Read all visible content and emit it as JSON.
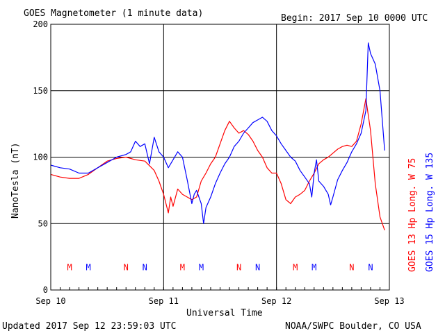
{
  "header": {
    "title": "GOES Magnetometer (1 minute data)",
    "begin": "Begin:  2017 Sep 10 0000 UTC"
  },
  "footer": {
    "updated": "Updated 2017 Sep 12 23:59:03 UTC",
    "source": "NOAA/SWPC Boulder, CO USA"
  },
  "colors": {
    "red_series": "#ff0000",
    "blue_series": "#0000ff",
    "grid": "#000000"
  },
  "chart_data": {
    "type": "line",
    "title": "GOES Magnetometer (1 minute data)",
    "xlabel": "Universal Time",
    "ylabel": "NanoTesla (nT)",
    "ylim": [
      0,
      200
    ],
    "xlim": [
      0,
      72
    ],
    "x_unit": "hours since 2017 Sep 10 0000 UTC",
    "x_ticks": [
      {
        "x": 0,
        "label": "Sep 10"
      },
      {
        "x": 24,
        "label": "Sep 11"
      },
      {
        "x": 48,
        "label": "Sep 12"
      },
      {
        "x": 72,
        "label": "Sep 13"
      }
    ],
    "y_ticks": [
      0,
      50,
      100,
      150,
      200
    ],
    "grid": true,
    "legend": [
      {
        "label": "GOES 13 Hp  Long. W 75",
        "color": "#ff0000"
      },
      {
        "label": "GOES 15 Hp  Long. W 135",
        "color": "#0000ff"
      }
    ],
    "markers": [
      {
        "x": 4,
        "label": "M",
        "color": "#ff0000"
      },
      {
        "x": 8,
        "label": "M",
        "color": "#0000ff"
      },
      {
        "x": 16,
        "label": "N",
        "color": "#ff0000"
      },
      {
        "x": 20,
        "label": "N",
        "color": "#0000ff"
      },
      {
        "x": 28,
        "label": "M",
        "color": "#ff0000"
      },
      {
        "x": 32,
        "label": "M",
        "color": "#0000ff"
      },
      {
        "x": 40,
        "label": "N",
        "color": "#ff0000"
      },
      {
        "x": 44,
        "label": "N",
        "color": "#0000ff"
      },
      {
        "x": 52,
        "label": "M",
        "color": "#ff0000"
      },
      {
        "x": 56,
        "label": "M",
        "color": "#0000ff"
      },
      {
        "x": 64,
        "label": "N",
        "color": "#ff0000"
      },
      {
        "x": 68,
        "label": "N",
        "color": "#0000ff"
      }
    ],
    "series": [
      {
        "name": "GOES 13 Hp  Long. W 75",
        "color": "#ff0000",
        "points": [
          [
            0,
            87
          ],
          [
            2,
            85
          ],
          [
            4,
            84
          ],
          [
            6,
            84
          ],
          [
            8,
            87
          ],
          [
            10,
            92
          ],
          [
            12,
            97
          ],
          [
            14,
            99
          ],
          [
            16,
            100
          ],
          [
            18,
            98
          ],
          [
            20,
            97
          ],
          [
            22,
            90
          ],
          [
            23,
            82
          ],
          [
            24,
            72
          ],
          [
            25,
            58
          ],
          [
            25.5,
            70
          ],
          [
            26,
            63
          ],
          [
            27,
            76
          ],
          [
            28,
            72
          ],
          [
            29,
            70
          ],
          [
            30,
            68
          ],
          [
            31,
            70
          ],
          [
            32,
            82
          ],
          [
            33,
            88
          ],
          [
            34,
            95
          ],
          [
            35,
            100
          ],
          [
            36,
            110
          ],
          [
            37,
            120
          ],
          [
            38,
            127
          ],
          [
            39,
            122
          ],
          [
            40,
            118
          ],
          [
            41,
            120
          ],
          [
            42,
            117
          ],
          [
            43,
            112
          ],
          [
            44,
            105
          ],
          [
            45,
            100
          ],
          [
            46,
            92
          ],
          [
            47,
            88
          ],
          [
            48,
            88
          ],
          [
            49,
            80
          ],
          [
            50,
            68
          ],
          [
            51,
            65
          ],
          [
            52,
            70
          ],
          [
            53,
            72
          ],
          [
            54,
            75
          ],
          [
            55,
            82
          ],
          [
            56,
            88
          ],
          [
            57,
            95
          ],
          [
            58,
            98
          ],
          [
            59,
            100
          ],
          [
            60,
            103
          ],
          [
            61,
            106
          ],
          [
            62,
            108
          ],
          [
            63,
            109
          ],
          [
            64,
            108
          ],
          [
            65,
            112
          ],
          [
            66,
            125
          ],
          [
            67,
            144
          ],
          [
            68,
            120
          ],
          [
            69,
            80
          ],
          [
            70,
            55
          ],
          [
            71,
            45
          ]
        ]
      },
      {
        "name": "GOES 15 Hp  Long. W 135",
        "color": "#0000ff",
        "points": [
          [
            0,
            94
          ],
          [
            2,
            92
          ],
          [
            4,
            91
          ],
          [
            6,
            88
          ],
          [
            8,
            88
          ],
          [
            10,
            92
          ],
          [
            12,
            96
          ],
          [
            14,
            100
          ],
          [
            16,
            102
          ],
          [
            17,
            104
          ],
          [
            18,
            112
          ],
          [
            19,
            108
          ],
          [
            20,
            110
          ],
          [
            21,
            95
          ],
          [
            22,
            115
          ],
          [
            23,
            104
          ],
          [
            24,
            100
          ],
          [
            25,
            92
          ],
          [
            26,
            98
          ],
          [
            27,
            104
          ],
          [
            28,
            100
          ],
          [
            29,
            83
          ],
          [
            30,
            65
          ],
          [
            30.5,
            72
          ],
          [
            31,
            75
          ],
          [
            32,
            65
          ],
          [
            32.5,
            50
          ],
          [
            33,
            62
          ],
          [
            34,
            70
          ],
          [
            35,
            80
          ],
          [
            36,
            88
          ],
          [
            37,
            95
          ],
          [
            38,
            100
          ],
          [
            39,
            108
          ],
          [
            40,
            112
          ],
          [
            41,
            118
          ],
          [
            42,
            122
          ],
          [
            43,
            126
          ],
          [
            44,
            128
          ],
          [
            45,
            130
          ],
          [
            46,
            127
          ],
          [
            47,
            120
          ],
          [
            48,
            116
          ],
          [
            49,
            110
          ],
          [
            50,
            105
          ],
          [
            51,
            100
          ],
          [
            52,
            97
          ],
          [
            53,
            90
          ],
          [
            54,
            85
          ],
          [
            55,
            80
          ],
          [
            55.5,
            70
          ],
          [
            56,
            88
          ],
          [
            56.5,
            98
          ],
          [
            57,
            82
          ],
          [
            58,
            78
          ],
          [
            59,
            72
          ],
          [
            59.5,
            64
          ],
          [
            60,
            70
          ],
          [
            61,
            83
          ],
          [
            62,
            90
          ],
          [
            63,
            96
          ],
          [
            64,
            104
          ],
          [
            65,
            110
          ],
          [
            66,
            118
          ],
          [
            67,
            135
          ],
          [
            67.5,
            186
          ],
          [
            68,
            178
          ],
          [
            69,
            170
          ],
          [
            70,
            150
          ],
          [
            71,
            105
          ]
        ]
      }
    ]
  }
}
